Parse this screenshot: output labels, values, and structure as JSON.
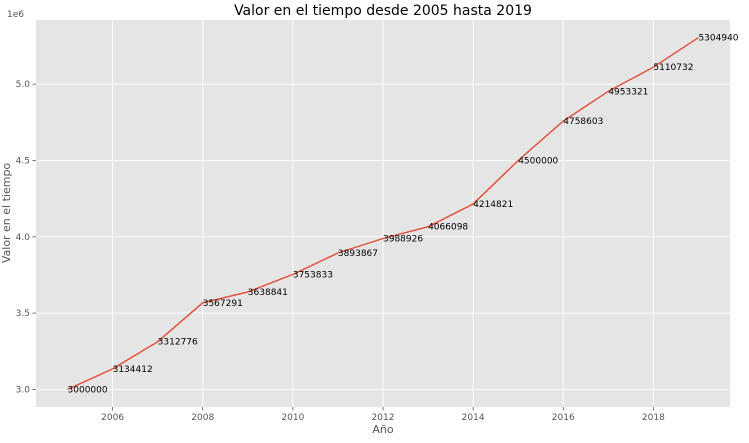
{
  "chart_data": {
    "type": "line",
    "title": "Valor en el tiempo desde 2005 hasta 2019",
    "xlabel": "Año",
    "ylabel": "Valor en el tiempo",
    "y_offset_label": "1e6",
    "x": [
      2005,
      2006,
      2007,
      2008,
      2009,
      2010,
      2011,
      2012,
      2013,
      2014,
      2015,
      2016,
      2017,
      2018,
      2019
    ],
    "values": [
      3000000,
      3134412,
      3312776,
      3567291,
      3638841,
      3753833,
      3893867,
      3988926,
      4066098,
      4214821,
      4500000,
      4758603,
      4953321,
      5110732,
      5304940
    ],
    "data_labels": [
      "3000000",
      "3134412",
      "3312776",
      "3567291",
      "3638841",
      "3753833",
      "3893867",
      "3988926",
      "4066098",
      "4214821",
      "4500000",
      "4758603",
      "4953321",
      "5110732",
      "5304940"
    ],
    "xlim": [
      2004.3,
      2019.7
    ],
    "ylim": [
      2884800,
      5420200
    ],
    "x_ticks": [
      2006,
      2008,
      2010,
      2012,
      2014,
      2016,
      2018
    ],
    "x_tick_labels": [
      "2006",
      "2008",
      "2010",
      "2012",
      "2014",
      "2016",
      "2018"
    ],
    "y_ticks": [
      3000000,
      3500000,
      4000000,
      4500000,
      5000000
    ],
    "y_tick_labels": [
      "3.0",
      "3.5",
      "4.0",
      "4.5",
      "5.0"
    ],
    "grid": true,
    "line_color": "#e24a33",
    "plot_background": "#e5e5e5"
  }
}
